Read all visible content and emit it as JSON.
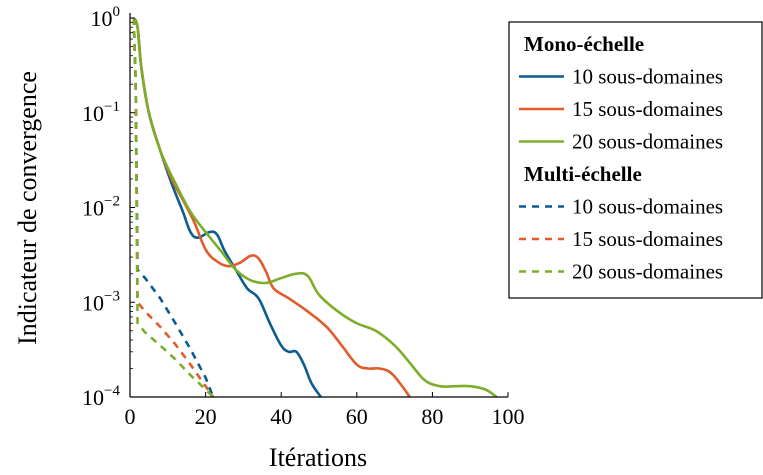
{
  "chart_data": {
    "type": "line",
    "title": "",
    "xlabel": "Itérations",
    "ylabel": "Indicateur de convergence",
    "xlim": [
      0,
      100
    ],
    "ylim": [
      0.0001,
      1
    ],
    "yscale": "log",
    "grid": false,
    "legend_position": "top-right, outside plot",
    "x_ticks": [
      0,
      20,
      40,
      60,
      80,
      100
    ],
    "x_tick_labels": [
      "0",
      "20",
      "40",
      "60",
      "80",
      "100"
    ],
    "y_ticks": [
      1,
      0.1,
      0.01,
      0.001,
      0.0001
    ],
    "y_tick_labels": [
      {
        "base": "10",
        "exp": "0"
      },
      {
        "base": "10",
        "exp": "−1"
      },
      {
        "base": "10",
        "exp": "−2"
      },
      {
        "base": "10",
        "exp": "−3"
      },
      {
        "base": "10",
        "exp": "−4"
      }
    ],
    "legend_groups": [
      {
        "title": "Mono-échelle",
        "entries": [
          "10 sous-domaines",
          "15 sous-domaines",
          "20 sous-domaines"
        ]
      },
      {
        "title": "Multi-échelle",
        "entries": [
          "10 sous-domaines",
          "15 sous-domaines",
          "20 sous-domaines"
        ]
      }
    ],
    "series": [
      {
        "name": "10 sous-domaines",
        "group": "Mono-échelle",
        "color": "#0a5c91",
        "dash": "solid",
        "x": [
          1,
          2,
          3,
          5,
          8,
          11,
          14,
          16,
          18,
          21,
          23,
          25,
          28,
          31,
          34,
          37,
          40,
          42,
          44,
          46,
          48,
          50.5
        ],
        "y": [
          1,
          0.8,
          0.3,
          0.1,
          0.04,
          0.018,
          0.009,
          0.0055,
          0.0048,
          0.0055,
          0.0052,
          0.0035,
          0.0022,
          0.0014,
          0.0011,
          0.0006,
          0.00035,
          0.0003,
          0.0003,
          0.00022,
          0.00014,
          0.0001
        ]
      },
      {
        "name": "15 sous-domaines",
        "group": "Mono-échelle",
        "color": "#e05c2a",
        "dash": "solid",
        "x": [
          1,
          2,
          3,
          5,
          8,
          11,
          14,
          17,
          20,
          23,
          26,
          29,
          32,
          34,
          36,
          38,
          42,
          47,
          52,
          56,
          60,
          63,
          66,
          69,
          72,
          74
        ],
        "y": [
          1,
          0.8,
          0.3,
          0.1,
          0.04,
          0.02,
          0.012,
          0.007,
          0.0036,
          0.0027,
          0.0024,
          0.0026,
          0.0031,
          0.0029,
          0.0021,
          0.0014,
          0.0011,
          0.0008,
          0.00055,
          0.00035,
          0.00022,
          0.0002,
          0.0002,
          0.00018,
          0.00013,
          0.0001
        ]
      },
      {
        "name": "20 sous-domaines",
        "group": "Mono-échelle",
        "color": "#7cae2a",
        "dash": "solid",
        "x": [
          1,
          2,
          3,
          5,
          8,
          12,
          16,
          20,
          24,
          28,
          32,
          36,
          40,
          44,
          47,
          50,
          55,
          60,
          65,
          70,
          74,
          78,
          82,
          86,
          90,
          94,
          97
        ],
        "y": [
          1,
          0.8,
          0.3,
          0.1,
          0.04,
          0.018,
          0.009,
          0.0055,
          0.0035,
          0.0022,
          0.0017,
          0.0016,
          0.0018,
          0.002,
          0.0019,
          0.0012,
          0.0008,
          0.0006,
          0.0005,
          0.00035,
          0.00023,
          0.00015,
          0.00013,
          0.00013,
          0.00013,
          0.00012,
          0.0001
        ]
      },
      {
        "name": "10 sous-domaines",
        "group": "Multi-échelle",
        "color": "#0a5c91",
        "dash": "dashed",
        "x": [
          1,
          1.5,
          2,
          4,
          8,
          12,
          16,
          20,
          22
        ],
        "y": [
          1,
          0.2,
          0.0022,
          0.0018,
          0.0011,
          0.0006,
          0.00032,
          0.00016,
          0.0001
        ]
      },
      {
        "name": "15 sous-domaines",
        "group": "Multi-échelle",
        "color": "#e05c2a",
        "dash": "dashed",
        "x": [
          1,
          1.5,
          2,
          4,
          8,
          12,
          16,
          20,
          22
        ],
        "y": [
          1,
          0.2,
          0.001,
          0.0008,
          0.00055,
          0.00036,
          0.00022,
          0.00013,
          0.0001
        ]
      },
      {
        "name": "20 sous-domaines",
        "group": "Multi-échelle",
        "color": "#7cae2a",
        "dash": "dashed",
        "x": [
          1,
          1.5,
          2,
          4,
          8,
          12,
          16,
          20,
          22
        ],
        "y": [
          1,
          0.2,
          0.0006,
          0.00048,
          0.00035,
          0.00025,
          0.00017,
          0.00012,
          0.0001
        ]
      }
    ]
  }
}
